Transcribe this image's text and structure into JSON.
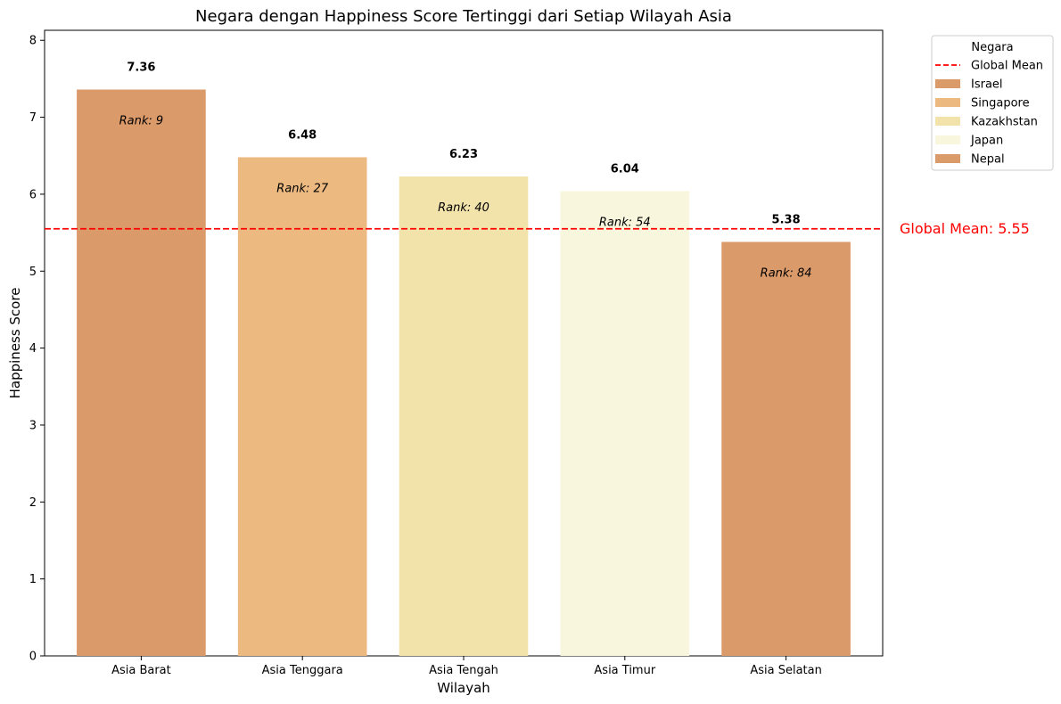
{
  "chart_data": {
    "type": "bar",
    "title": "Negara dengan Happiness Score Tertinggi dari Setiap Wilayah Asia",
    "xlabel": "Wilayah",
    "ylabel": "Happiness Score",
    "ylim": [
      0,
      8.13
    ],
    "yticks": [
      "0",
      "1",
      "2",
      "3",
      "4",
      "5",
      "6",
      "7",
      "8"
    ],
    "categories": [
      "Asia Barat",
      "Asia Tenggara",
      "Asia Tengah",
      "Asia Timur",
      "Asia Selatan"
    ],
    "values": [
      7.36,
      6.48,
      6.23,
      6.04,
      5.38
    ],
    "value_labels": [
      "7.36",
      "6.48",
      "6.23",
      "6.04",
      "5.38"
    ],
    "countries": [
      "Israel",
      "Singapore",
      "Kazakhstan",
      "Japan",
      "Nepal"
    ],
    "ranks": [
      "Rank: 9",
      "Rank: 27",
      "Rank: 40",
      "Rank: 54",
      "Rank: 84"
    ],
    "colors": [
      "#db9a6a",
      "#ecba81",
      "#f2e3aa",
      "#f8f6dc",
      "#db9a6a"
    ],
    "global_mean": {
      "value": 5.55,
      "label": "Global Mean: 5.55",
      "legend_label": "Global Mean",
      "color": "#ff0000",
      "style": "dashed"
    },
    "legend": {
      "title": "Negara",
      "placement": "outside-top-right",
      "entries": [
        "Global Mean",
        "Israel",
        "Singapore",
        "Kazakhstan",
        "Japan",
        "Nepal"
      ]
    },
    "grid": false
  }
}
